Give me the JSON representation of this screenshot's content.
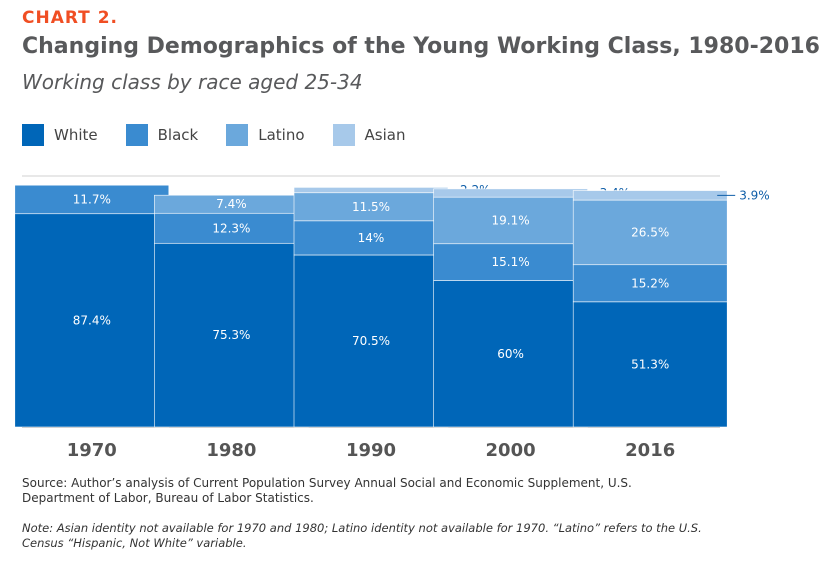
{
  "header": {
    "chart_number": "CHART 2.",
    "title": "Changing Demographics of the Young Working Class, 1980-2016",
    "subtitle": "Working class by race aged 25-34"
  },
  "colors": {
    "White": "#0066b8",
    "Black": "#3a8bd0",
    "Latino": "#6ba8dc",
    "Asian": "#a7c9ea",
    "accent": "#f04e23",
    "outside_label": "#0f5ea8"
  },
  "chart_data": {
    "type": "bar",
    "stacked": true,
    "title": "Changing Demographics of the Young Working Class, 1980-2016",
    "subtitle": "Working class by race aged 25-34",
    "categories": [
      "1970",
      "1980",
      "1990",
      "2000",
      "2016"
    ],
    "series": [
      {
        "name": "White",
        "values": [
          87.4,
          75.3,
          70.5,
          60,
          51.3
        ],
        "labels": [
          "87.4%",
          "75.3%",
          "70.5%",
          "60%",
          "51.3%"
        ]
      },
      {
        "name": "Black",
        "values": [
          11.7,
          12.3,
          14,
          15.1,
          15.2
        ],
        "labels": [
          "11.7%",
          "12.3%",
          "14%",
          "15.1%",
          "15.2%"
        ]
      },
      {
        "name": "Latino",
        "values": [
          null,
          7.4,
          11.5,
          19.1,
          26.5
        ],
        "labels": [
          "",
          "7.4%",
          "11.5%",
          "19.1%",
          "26.5%"
        ]
      },
      {
        "name": "Asian",
        "values": [
          null,
          null,
          2.2,
          3.4,
          3.9
        ],
        "labels": [
          "",
          "",
          "2.2%",
          "3.4%",
          "3.9%"
        ]
      }
    ],
    "ylim": [
      0,
      100
    ],
    "grid": true,
    "legend": "top-left",
    "xlabel": "",
    "ylabel": ""
  },
  "footer": {
    "source": "Source: Author’s analysis of Current Population Survey Annual Social and Economic Supplement, U.S. Department of Labor, Bureau of Labor Statistics.",
    "note": "Note: Asian identity not available for 1970 and 1980; Latino identity not available for 1970. “Latino” refers to the U.S. Census “Hispanic, Not White” variable."
  }
}
